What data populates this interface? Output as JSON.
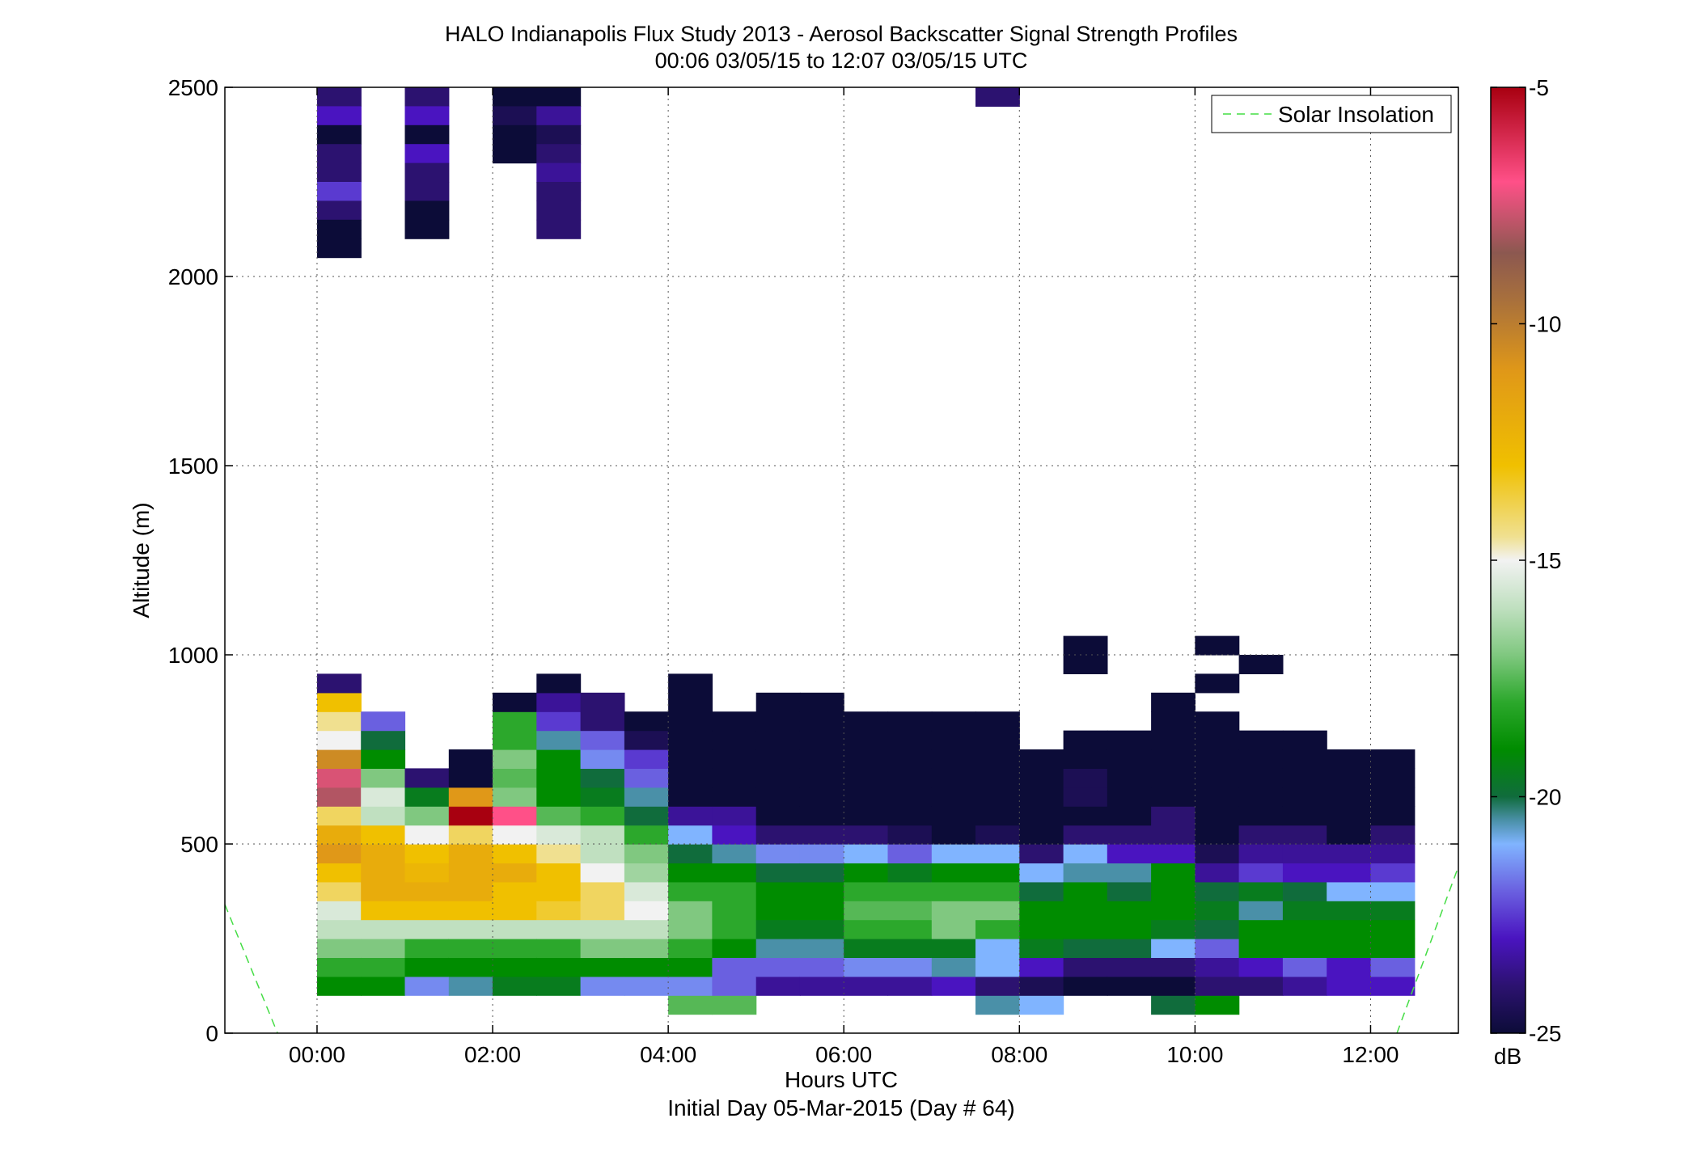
{
  "chart_data": {
    "type": "heatmap",
    "title": "HALO Indianapolis Flux Study 2013 - Aerosol Backscatter Signal Strength Profiles",
    "subtitle": "00:06 03/05/15 to 12:07 03/05/15  UTC",
    "xlabel": "Hours UTC",
    "xlabel2": "Initial Day 05-Mar-2015 (Day # 64)",
    "ylabel": "Altitude (m)",
    "xlim": [
      -1.05,
      13.0
    ],
    "ylim": [
      0,
      2500
    ],
    "x_ticks": [
      {
        "value": 0,
        "label": "00:00"
      },
      {
        "value": 2,
        "label": "02:00"
      },
      {
        "value": 4,
        "label": "04:00"
      },
      {
        "value": 6,
        "label": "06:00"
      },
      {
        "value": 8,
        "label": "08:00"
      },
      {
        "value": 10,
        "label": "10:00"
      },
      {
        "value": 12,
        "label": "12:00"
      }
    ],
    "y_ticks": [
      {
        "value": 0,
        "label": "0"
      },
      {
        "value": 500,
        "label": "500"
      },
      {
        "value": 1000,
        "label": "1000"
      },
      {
        "value": 1500,
        "label": "1500"
      },
      {
        "value": 2000,
        "label": "2000"
      },
      {
        "value": 2500,
        "label": "2500"
      }
    ],
    "grid": true,
    "legend": {
      "label": "Solar Insolation",
      "placement": "top-right",
      "color": "#44dd44"
    },
    "colorbar": {
      "label": "dB",
      "range": [
        -25,
        -5
      ],
      "ticks": [
        {
          "value": -5,
          "label": "-5"
        },
        {
          "value": -10,
          "label": "-10"
        },
        {
          "value": -15,
          "label": "-15"
        },
        {
          "value": -20,
          "label": "-20"
        },
        {
          "value": -25,
          "label": "-25"
        }
      ],
      "stops": [
        {
          "v": -25,
          "c": "#0c0c38"
        },
        {
          "v": -24,
          "c": "#2c1270"
        },
        {
          "v": -23,
          "c": "#4a14c0"
        },
        {
          "v": -22,
          "c": "#6a60e0"
        },
        {
          "v": -21,
          "c": "#80b4ff"
        },
        {
          "v": -20.5,
          "c": "#4a90a8"
        },
        {
          "v": -20,
          "c": "#106c3c"
        },
        {
          "v": -19,
          "c": "#008c00"
        },
        {
          "v": -18,
          "c": "#2ca82c"
        },
        {
          "v": -17,
          "c": "#80c880"
        },
        {
          "v": -16,
          "c": "#c0e0c0"
        },
        {
          "v": -15,
          "c": "#f2f2f2"
        },
        {
          "v": -14.5,
          "c": "#f0e090"
        },
        {
          "v": -13,
          "c": "#f0c000"
        },
        {
          "v": -11,
          "c": "#e09818"
        },
        {
          "v": -9.5,
          "c": "#a8703c"
        },
        {
          "v": -8.5,
          "c": "#8c5850"
        },
        {
          "v": -7,
          "c": "#ff5088"
        },
        {
          "v": -5,
          "c": "#a80010"
        }
      ]
    },
    "solar_insolation": [
      {
        "x": [
          -1.05,
          -0.45
        ],
        "y": [
          340,
          0
        ]
      },
      {
        "x": [
          12.3,
          13.0
        ],
        "y": [
          0,
          440
        ]
      }
    ],
    "cell_width_hours": 0.5,
    "cell_height_m": 50,
    "columns": [
      {
        "x": 0.0,
        "y0": 100,
        "values": [
          -19,
          -18,
          -17,
          -16,
          -15.5,
          -14,
          -13,
          -11,
          -12,
          -14,
          -8,
          -7.5,
          -10.5,
          -15,
          -14.5,
          -13,
          -24
        ]
      },
      {
        "x": 0.5,
        "y0": 100,
        "values": [
          -19,
          -18,
          -17,
          -16,
          -13,
          -12,
          -12,
          -12,
          -13,
          -16,
          -15.5,
          -17,
          -19,
          -20,
          -22
        ]
      },
      {
        "x": 1.0,
        "y0": 100,
        "values": [
          -21.5,
          -19,
          -18,
          -16,
          -13,
          -12,
          -12.5,
          -13,
          -15,
          -17,
          -19.5,
          -24
        ]
      },
      {
        "x": 1.5,
        "y0": 100,
        "values": [
          -20.5,
          -19,
          -18,
          -16,
          -13,
          -12,
          -12,
          -12,
          -14,
          -5,
          -11,
          -25,
          -25
        ]
      },
      {
        "x": 2.0,
        "y0": 100,
        "values": [
          -19.5,
          -19,
          -18,
          -16,
          -13,
          -13,
          -12,
          -13,
          -15,
          -7,
          -17,
          -17.5,
          -17,
          -18,
          -18,
          -25
        ]
      },
      {
        "x": 2.5,
        "y0": 100,
        "values": [
          -19.5,
          -19,
          -18,
          -16,
          -13.5,
          -13,
          -13,
          -14.5,
          -15.5,
          -17.5,
          -19,
          -19,
          -19,
          -20.5,
          -22.5,
          -23.5,
          -25
        ]
      },
      {
        "x": 3.0,
        "y0": 100,
        "values": [
          -21.5,
          -19,
          -17,
          -16,
          -14,
          -14,
          -15,
          -16,
          -16,
          -18,
          -19.5,
          -20,
          -21.5,
          -22,
          -24,
          -24
        ]
      },
      {
        "x": 3.5,
        "y0": 100,
        "values": [
          -21.5,
          -19,
          -17,
          -16,
          -15,
          -15.5,
          -16.5,
          -17,
          -18,
          -20,
          -20.5,
          -22,
          -22.5,
          -24.5,
          -25
        ]
      },
      {
        "x": 4.0,
        "y0": 50,
        "values": [
          -17.5,
          -21.5,
          -19,
          -18,
          -17,
          -17,
          -18,
          -19,
          -20,
          -21,
          -23.5,
          -25,
          -25,
          -25,
          -25,
          -25,
          -25
        ]
      },
      {
        "x": 4.5,
        "y0": 50,
        "values": [
          -17.5,
          -22,
          -22,
          -19,
          -18,
          -18,
          -18,
          -19,
          -20.5,
          -23,
          -23.5,
          -25,
          -25,
          -25,
          -25,
          -25
        ]
      },
      {
        "x": 5.0,
        "y0": 100,
        "values": [
          -23.5,
          -22,
          -20.5,
          -19.5,
          -19,
          -19,
          -20,
          -21.5,
          -24,
          -25,
          -25,
          -25,
          -25,
          -25,
          -25,
          -25
        ]
      },
      {
        "x": 5.5,
        "y0": 100,
        "values": [
          -23.5,
          -22,
          -20.5,
          -19.5,
          -19,
          -19,
          -20,
          -21.5,
          -24,
          -25,
          -25,
          -25,
          -25,
          -25,
          -25,
          -25
        ]
      },
      {
        "x": 6.0,
        "y0": 100,
        "values": [
          -23.5,
          -21.5,
          -19.5,
          -18,
          -17.5,
          -18,
          -19,
          -21,
          -24,
          -25,
          -25,
          -25,
          -25,
          -25,
          -25
        ]
      },
      {
        "x": 6.5,
        "y0": 100,
        "values": [
          -23.5,
          -21.5,
          -19.5,
          -18,
          -17.5,
          -18,
          -19.5,
          -22,
          -24.5,
          -25,
          -25,
          -25,
          -25,
          -25,
          -25
        ]
      },
      {
        "x": 7.0,
        "y0": 100,
        "values": [
          -23,
          -20.5,
          -19.5,
          -17,
          -17,
          -18,
          -19,
          -21,
          -25,
          -25,
          -25,
          -25,
          -25,
          -25,
          -25
        ]
      },
      {
        "x": 7.5,
        "y0": 50,
        "values": [
          -20.5,
          -24,
          -21,
          -21,
          -18,
          -17,
          -18,
          -19,
          -21,
          -24.5,
          -25,
          -25,
          -25,
          -25,
          -25,
          -25
        ]
      },
      {
        "x": 8.0,
        "y0": 50,
        "values": [
          -21,
          -24.5,
          -23,
          -19.5,
          -19,
          -19,
          -20,
          -21,
          -24,
          -25,
          -25,
          -25,
          -25,
          -25
        ]
      },
      {
        "x": 8.5,
        "y0": 100,
        "values": [
          -25,
          -24,
          -20,
          -19,
          -19,
          -19,
          -20.5,
          -21,
          -24,
          -25,
          -24.5,
          -24.5,
          -25,
          -25
        ]
      },
      {
        "x": 9.0,
        "y0": 100,
        "values": [
          -25,
          -24,
          -20,
          -19,
          -19,
          -20,
          -20.5,
          -23,
          -24,
          -25,
          -25,
          -25,
          -25,
          -25
        ]
      },
      {
        "x": 9.5,
        "y0": 50,
        "values": [
          -20,
          -25,
          -24,
          -21,
          -19.5,
          -19,
          -19,
          -19,
          -23,
          -24,
          -24,
          -25,
          -25,
          -25,
          -25,
          -25,
          -25
        ]
      },
      {
        "x": 10.0,
        "y0": 50,
        "values": [
          -19,
          -24,
          -23.5,
          -22,
          -20,
          -19.5,
          -20,
          -23.5,
          -24.5,
          -25,
          -25,
          -25,
          -25,
          -25,
          -25,
          -25
        ]
      },
      {
        "x": 10.5,
        "y0": 100,
        "values": [
          -24,
          -23,
          -19,
          -19,
          -20.5,
          -19.5,
          -22.5,
          -23.5,
          -24,
          -25,
          -25,
          -25,
          -25,
          -25
        ]
      },
      {
        "x": 11.0,
        "y0": 100,
        "values": [
          -23.5,
          -22,
          -19,
          -19,
          -19.5,
          -20,
          -23,
          -23.5,
          -24,
          -25,
          -25,
          -25,
          -25,
          -25
        ]
      },
      {
        "x": 11.5,
        "y0": 100,
        "values": [
          -23,
          -23,
          -19,
          -19,
          -19.5,
          -21,
          -23,
          -23.5,
          -25,
          -25,
          -25,
          -25,
          -25
        ]
      },
      {
        "x": 12.0,
        "y0": 100,
        "values": [
          -23,
          -22,
          -19,
          -19,
          -19.5,
          -21,
          -22.5,
          -23.5,
          -24,
          -25,
          -25,
          -25,
          -25
        ]
      }
    ],
    "extra_cells": [
      {
        "x": 0.0,
        "y": 2450,
        "v": -24
      },
      {
        "x": 0.0,
        "y": 2400,
        "v": -23
      },
      {
        "x": 0.0,
        "y": 2350,
        "v": -25
      },
      {
        "x": 0.0,
        "y": 2300,
        "v": -24
      },
      {
        "x": 0.0,
        "y": 2250,
        "v": -24
      },
      {
        "x": 0.0,
        "y": 2200,
        "v": -22.5
      },
      {
        "x": 0.0,
        "y": 2150,
        "v": -24
      },
      {
        "x": 0.0,
        "y": 2100,
        "v": -25
      },
      {
        "x": 0.0,
        "y": 2050,
        "v": -25
      },
      {
        "x": 1.0,
        "y": 2450,
        "v": -24
      },
      {
        "x": 1.0,
        "y": 2400,
        "v": -23
      },
      {
        "x": 1.0,
        "y": 2350,
        "v": -25
      },
      {
        "x": 1.0,
        "y": 2300,
        "v": -23
      },
      {
        "x": 1.0,
        "y": 2250,
        "v": -24
      },
      {
        "x": 1.0,
        "y": 2200,
        "v": -24
      },
      {
        "x": 1.0,
        "y": 2150,
        "v": -25
      },
      {
        "x": 1.0,
        "y": 2100,
        "v": -25
      },
      {
        "x": 2.0,
        "y": 2450,
        "v": -25
      },
      {
        "x": 2.0,
        "y": 2400,
        "v": -24.5
      },
      {
        "x": 2.0,
        "y": 2350,
        "v": -25
      },
      {
        "x": 2.0,
        "y": 2300,
        "v": -25
      },
      {
        "x": 2.5,
        "y": 2450,
        "v": -25
      },
      {
        "x": 2.5,
        "y": 2400,
        "v": -23.5
      },
      {
        "x": 2.5,
        "y": 2350,
        "v": -24.5
      },
      {
        "x": 2.5,
        "y": 2300,
        "v": -24
      },
      {
        "x": 2.5,
        "y": 2250,
        "v": -23.5
      },
      {
        "x": 2.5,
        "y": 2200,
        "v": -24
      },
      {
        "x": 2.5,
        "y": 2150,
        "v": -24
      },
      {
        "x": 2.5,
        "y": 2100,
        "v": -24
      },
      {
        "x": 7.5,
        "y": 2450,
        "v": -24
      },
      {
        "x": 4.0,
        "y": 900,
        "v": -25
      },
      {
        "x": 8.5,
        "y": 950,
        "v": -25
      },
      {
        "x": 8.5,
        "y": 1000,
        "v": -25
      },
      {
        "x": 10.0,
        "y": 900,
        "v": -25
      },
      {
        "x": 10.0,
        "y": 1000,
        "v": -25
      },
      {
        "x": 10.5,
        "y": 950,
        "v": -25
      }
    ]
  }
}
